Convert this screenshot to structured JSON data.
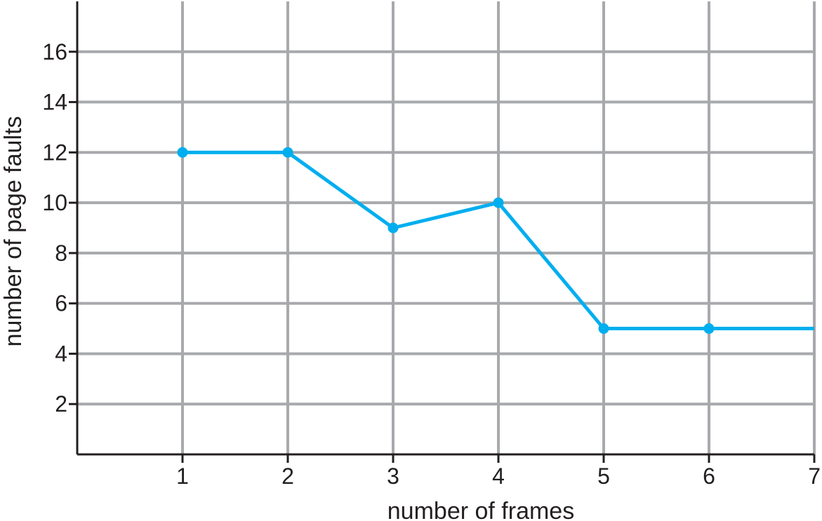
{
  "chart_data": {
    "type": "line",
    "title": "",
    "xlabel": "number of frames",
    "ylabel": "number of page faults",
    "xlim": [
      0,
      7
    ],
    "ylim": [
      0,
      18
    ],
    "x_ticks": [
      1,
      2,
      3,
      4,
      5,
      6,
      7
    ],
    "y_ticks": [
      2,
      4,
      6,
      8,
      10,
      12,
      14,
      16
    ],
    "grid": true,
    "series": [
      {
        "points": [
          {
            "x": 1,
            "y": 12
          },
          {
            "x": 2,
            "y": 12
          },
          {
            "x": 3,
            "y": 9
          },
          {
            "x": 4,
            "y": 10
          },
          {
            "x": 5,
            "y": 5
          },
          {
            "x": 6,
            "y": 5
          },
          {
            "x": 7,
            "y": 5
          }
        ],
        "markers": [
          1,
          2,
          3,
          4,
          5,
          6
        ],
        "color": "#00aeef"
      }
    ],
    "grid_color": "#a7a9ac",
    "axis_color": "#231f20"
  }
}
